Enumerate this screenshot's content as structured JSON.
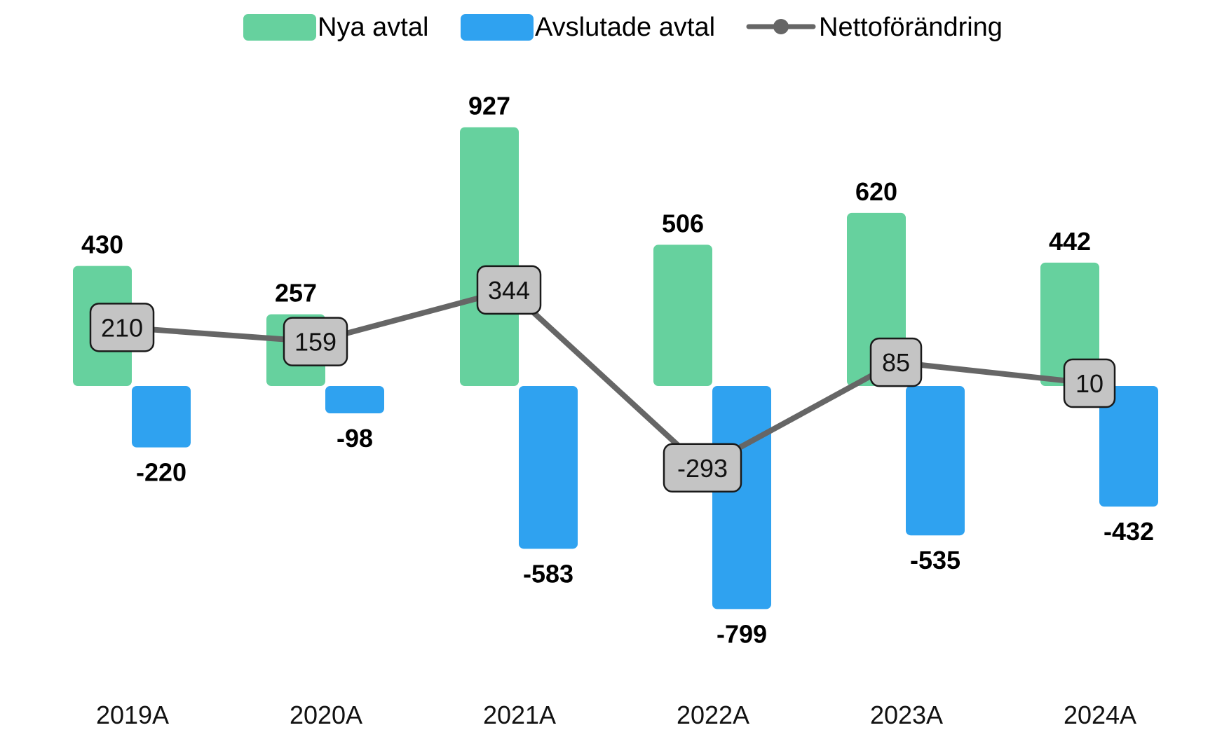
{
  "chart_data": {
    "type": "bar",
    "categories": [
      "2019A",
      "2020A",
      "2021A",
      "2022A",
      "2023A",
      "2024A"
    ],
    "series": [
      {
        "name": "Nya avtal",
        "type": "bar",
        "color": "#66d19e",
        "values": [
          430,
          257,
          927,
          506,
          620,
          442
        ]
      },
      {
        "name": "Avslutade avtal",
        "type": "bar",
        "color": "#2fa2f0",
        "values": [
          -220,
          -98,
          -583,
          -799,
          -535,
          -432
        ]
      },
      {
        "name": "Nettoförändring",
        "type": "line",
        "color": "#666666",
        "values": [
          210,
          159,
          344,
          -293,
          85,
          10
        ]
      }
    ],
    "legend_position": "top-center",
    "grid": false,
    "ylim": [
      -1000,
      1100
    ],
    "title": "",
    "xlabel": "",
    "ylabel": ""
  },
  "colors": {
    "net_label_fill": "#c4c4c4",
    "net_label_border": "#1a1a1a"
  }
}
